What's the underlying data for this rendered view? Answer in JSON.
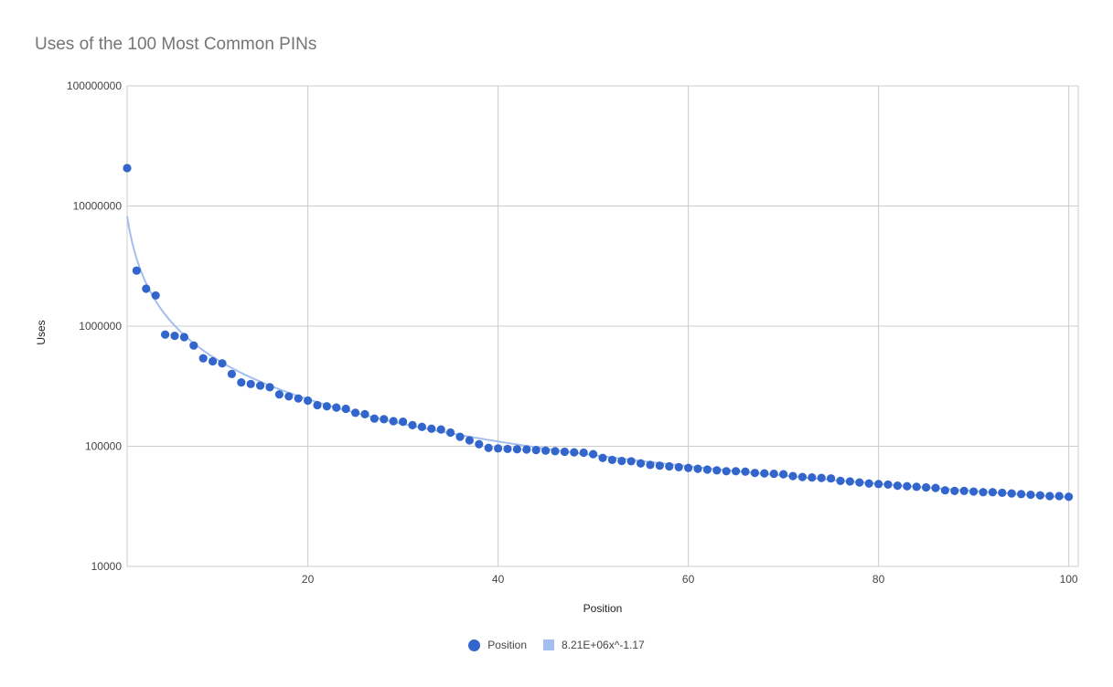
{
  "chart_data": {
    "type": "scatter",
    "title": "Uses of the 100 Most Common PINs",
    "xlabel": "Position",
    "ylabel": "Uses",
    "scale_y": "log",
    "xlim": [
      1,
      101
    ],
    "ylim": [
      10000,
      100000000
    ],
    "x_ticks": [
      "20",
      "40",
      "60",
      "80",
      "100"
    ],
    "y_ticks": [
      "10000",
      "100000",
      "1000000",
      "10000000",
      "100000000"
    ],
    "grid": true,
    "legend_position": "bottom",
    "series": [
      {
        "name": "Position",
        "color": "#3366cc",
        "x": [
          1,
          2,
          3,
          4,
          5,
          6,
          7,
          8,
          9,
          10,
          11,
          12,
          13,
          14,
          15,
          16,
          17,
          18,
          19,
          20,
          21,
          22,
          23,
          24,
          25,
          26,
          27,
          28,
          29,
          30,
          31,
          32,
          33,
          34,
          35,
          36,
          37,
          38,
          39,
          40,
          41,
          42,
          43,
          44,
          45,
          46,
          47,
          48,
          49,
          50,
          51,
          52,
          53,
          54,
          55,
          56,
          57,
          58,
          59,
          60,
          61,
          62,
          63,
          64,
          65,
          66,
          67,
          68,
          69,
          70,
          71,
          72,
          73,
          74,
          75,
          76,
          77,
          78,
          79,
          80,
          81,
          82,
          83,
          84,
          85,
          86,
          87,
          88,
          89,
          90,
          91,
          92,
          93,
          94,
          95,
          96,
          97,
          98,
          99,
          100
        ],
        "y": [
          20700000,
          2900000,
          2050000,
          1800000,
          850000,
          830000,
          810000,
          690000,
          540000,
          510000,
          490000,
          400000,
          340000,
          330000,
          320000,
          310000,
          270000,
          260000,
          250000,
          240000,
          220000,
          215000,
          210000,
          205000,
          190000,
          185000,
          170000,
          168000,
          162000,
          160000,
          150000,
          145000,
          140000,
          138000,
          130000,
          120000,
          112000,
          104000,
          97000,
          96000,
          95000,
          94500,
          94000,
          93000,
          92000,
          91000,
          90000,
          89000,
          88500,
          86000,
          80000,
          77000,
          75500,
          75000,
          72000,
          70000,
          69000,
          68000,
          67000,
          66000,
          65000,
          64000,
          63000,
          62000,
          62000,
          61500,
          60000,
          59500,
          59000,
          58500,
          56500,
          55500,
          55000,
          54500,
          54000,
          51500,
          51000,
          50000,
          49000,
          48500,
          48000,
          47000,
          46500,
          46000,
          45500,
          45000,
          43000,
          42500,
          42500,
          42000,
          41500,
          41500,
          41000,
          40500,
          40000,
          39500,
          39000,
          38500,
          38500,
          38000
        ]
      }
    ],
    "trendline": {
      "label": "8.21E+06x^-1.17",
      "color": "#a3bff0",
      "coefficient": 8210000,
      "exponent": -1.17
    }
  }
}
